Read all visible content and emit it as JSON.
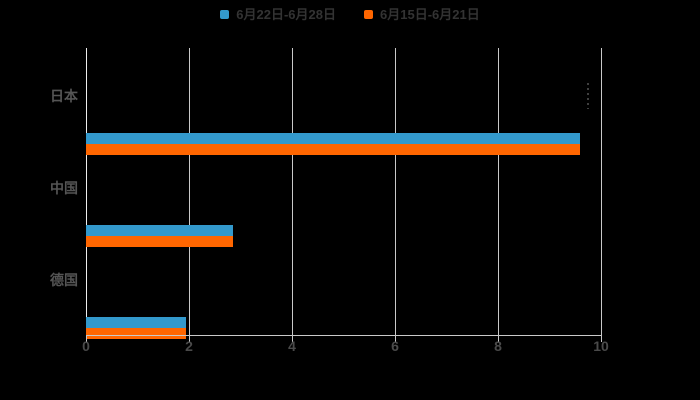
{
  "colors": {
    "background": "#000000",
    "series_blue": "#3399cc",
    "series_orange": "#ff6600",
    "gridline": "#c9c9c9",
    "axis_line": "#ededed",
    "tick_text": "#4a4a4a",
    "category_text": "#555555",
    "legend_text": "#333333",
    "annotation": "#3f3f3f"
  },
  "legend": {
    "items": [
      {
        "label": "6月22日-6月28日",
        "color": "#3399cc"
      },
      {
        "label": "6月15日-6月21日",
        "color": "#ff6600"
      }
    ]
  },
  "chart_data": {
    "type": "bar",
    "orientation": "horizontal",
    "title": "",
    "xlabel": "",
    "ylabel": "",
    "categories": [
      "日本",
      "中国",
      "德国"
    ],
    "series": [
      {
        "name": "6月22日-6月28日",
        "color": "#3399cc",
        "values": [
          9.6,
          2.85,
          1.95
        ]
      },
      {
        "name": "6月15日-6月21日",
        "color": "#ff6600",
        "values": [
          9.6,
          2.85,
          1.95
        ]
      }
    ],
    "xlim": [
      0,
      10
    ],
    "xticks": [
      0,
      2,
      4,
      6,
      8,
      10
    ],
    "grid": true,
    "legend_position": "top",
    "annotation": {
      "type": "dotted-vertical-mark",
      "category": "日本",
      "x": 9.72
    }
  }
}
